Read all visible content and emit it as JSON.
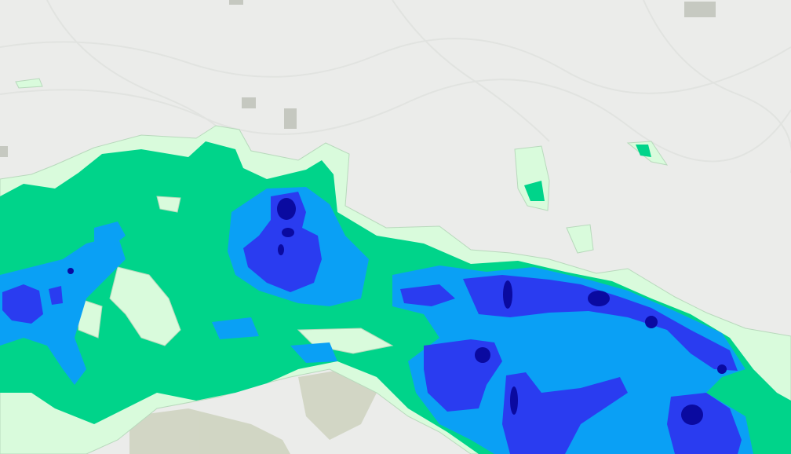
{
  "map": {
    "basemap": "terrain-hillshade",
    "colors": {
      "basemap": "#ebecea",
      "terrain_shadow": "#dcdedb",
      "urban_patch": "#b9bdb3",
      "vegetation_patch": "#c9cfb8"
    },
    "precipitation_overlay": {
      "levels": [
        {
          "level": 1,
          "color": "#d9fbdc"
        },
        {
          "level": 2,
          "color": "#00d48a"
        },
        {
          "level": 3,
          "color": "#0aa0f5"
        },
        {
          "level": 4,
          "color": "#2a3cf0"
        },
        {
          "level": 5,
          "color": "#0a0aa0"
        }
      ]
    }
  }
}
